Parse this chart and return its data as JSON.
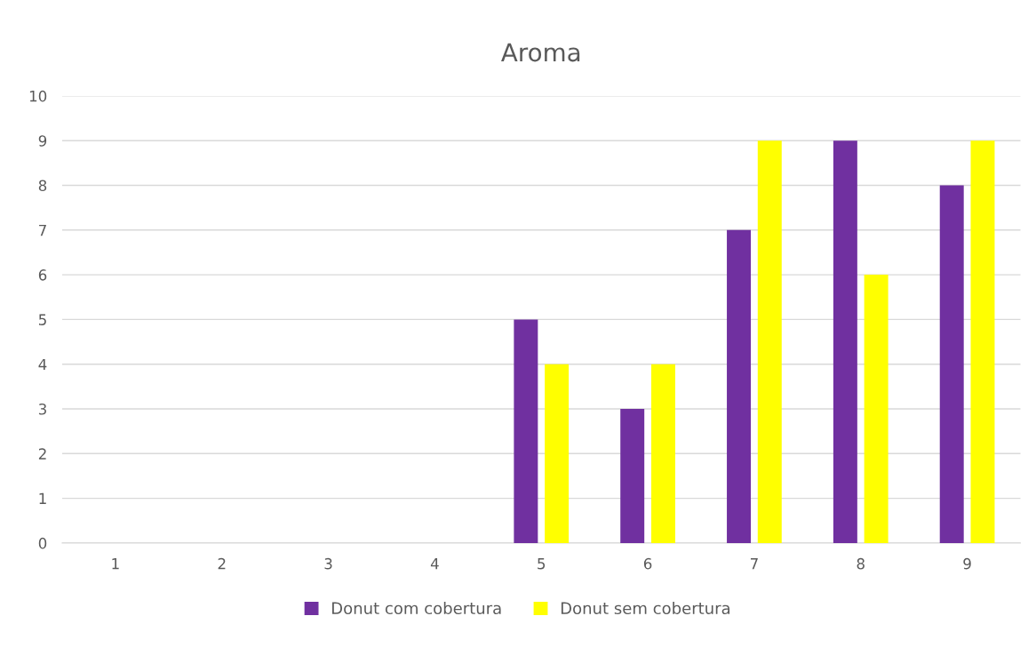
{
  "chart_data": {
    "type": "bar",
    "title": "Aroma",
    "categories": [
      "1",
      "2",
      "3",
      "4",
      "5",
      "6",
      "7",
      "8",
      "9"
    ],
    "series": [
      {
        "name": "Donut com cobertura",
        "color": "#7030a0",
        "values": [
          0,
          0,
          0,
          0,
          5,
          3,
          7,
          9,
          8
        ]
      },
      {
        "name": "Donut sem cobertura",
        "color": "#ffff00",
        "values": [
          0,
          0,
          0,
          0,
          4,
          4,
          9,
          6,
          9
        ]
      }
    ],
    "ylim": [
      0,
      10
    ],
    "yticks": [
      0,
      1,
      2,
      3,
      4,
      5,
      6,
      7,
      8,
      9,
      10
    ],
    "grid": "y",
    "legend": "bottom"
  }
}
